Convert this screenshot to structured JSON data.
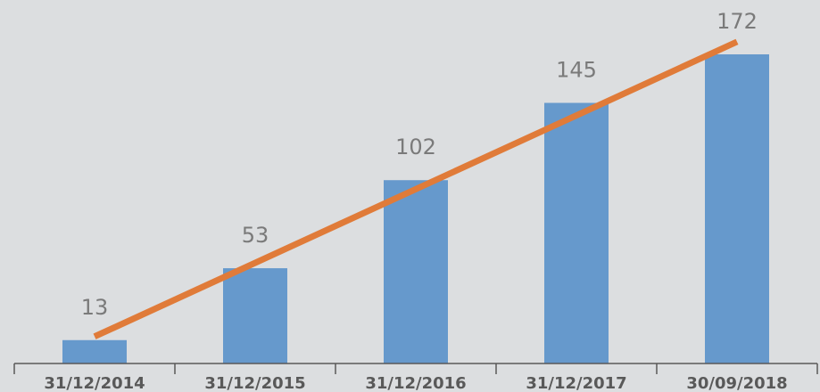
{
  "chart_data": {
    "type": "bar",
    "categories": [
      "31/12/2014",
      "31/12/2015",
      "31/12/2016",
      "31/12/2017",
      "30/09/2018"
    ],
    "values": [
      13,
      53,
      102,
      145,
      172
    ],
    "color": "#6699cc",
    "trendline": {
      "type": "linear",
      "color": "#e07b39"
    }
  }
}
